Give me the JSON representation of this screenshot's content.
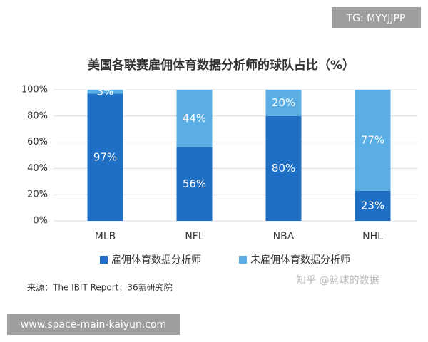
{
  "chart_data": {
    "type": "bar",
    "stacked": true,
    "title": "美国各联赛雇佣体育数据分析师的球队占比（%）",
    "categories": [
      "MLB",
      "NFL",
      "NBA",
      "NHL"
    ],
    "series": [
      {
        "name": "雇佣体育数据分析师",
        "color": "#1f6fc5",
        "values": [
          97,
          56,
          80,
          23
        ],
        "value_labels": [
          "97%",
          "56%",
          "80%",
          "23%"
        ]
      },
      {
        "name": "未雇佣体育数据分析师",
        "color": "#5aaee3",
        "values": [
          3,
          44,
          20,
          77
        ],
        "value_labels": [
          "3%",
          "44%",
          "20%",
          "77%"
        ]
      }
    ],
    "ylim": [
      0,
      100
    ],
    "yticks": [
      {
        "value": 0,
        "label": "0%"
      },
      {
        "value": 20,
        "label": "20%"
      },
      {
        "value": 40,
        "label": "40%"
      },
      {
        "value": 60,
        "label": "60%"
      },
      {
        "value": 80,
        "label": "80%"
      },
      {
        "value": 100,
        "label": "100%"
      }
    ],
    "grid": true,
    "source": "来源：The IBIT Report，36氪研究院",
    "watermark": "知乎 @篮球的数据"
  },
  "header_badge": "TG: MYYJJPP",
  "footer_badge": "www.space-main-kaiyun.com"
}
